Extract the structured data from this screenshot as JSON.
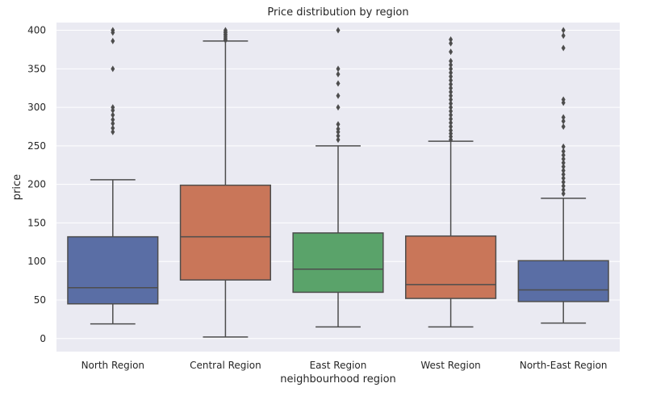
{
  "chart_data": {
    "type": "box",
    "title": "Price distribution by region",
    "xlabel": "neighbourhood region",
    "ylabel": "price",
    "ylim": [
      -17,
      410
    ],
    "yticks": [
      0,
      50,
      100,
      150,
      200,
      250,
      300,
      350,
      400
    ],
    "grid": true,
    "categories": [
      "North Region",
      "Central Region",
      "East Region",
      "West Region",
      "North-East Region"
    ],
    "boxes": [
      {
        "category": "North Region",
        "color": "#5a6ea5",
        "whisker_low": 19,
        "q1": 45,
        "median": 66,
        "q3": 132,
        "whisker_high": 206,
        "outliers": [
          268,
          273,
          279,
          284,
          290,
          296,
          300,
          350,
          386,
          397,
          400
        ]
      },
      {
        "category": "Central Region",
        "color": "#c97659",
        "whisker_low": 2,
        "q1": 76,
        "median": 132,
        "q3": 199,
        "whisker_high": 386,
        "outliers": [
          387,
          388,
          390,
          392,
          394,
          395,
          397,
          398,
          400
        ]
      },
      {
        "category": "East Region",
        "color": "#5aa36a",
        "whisker_low": 15,
        "q1": 60,
        "median": 90,
        "q3": 137,
        "whisker_high": 250,
        "outliers": [
          258,
          263,
          268,
          272,
          278,
          300,
          315,
          331,
          343,
          350,
          400
        ]
      },
      {
        "category": "West Region",
        "color": "#c97659",
        "whisker_low": 15,
        "q1": 52,
        "median": 70,
        "q3": 133,
        "whisker_high": 256,
        "outliers": [
          258,
          262,
          266,
          270,
          275,
          280,
          285,
          290,
          295,
          300,
          305,
          310,
          315,
          320,
          325,
          330,
          335,
          340,
          345,
          350,
          355,
          360,
          372,
          383,
          388
        ]
      },
      {
        "category": "North-East Region",
        "color": "#5a6ea5",
        "whisker_low": 20,
        "q1": 48,
        "median": 63,
        "q3": 101,
        "whisker_high": 182,
        "outliers": [
          188,
          193,
          198,
          203,
          208,
          213,
          218,
          223,
          228,
          233,
          238,
          243,
          249,
          275,
          282,
          287,
          306,
          310,
          377,
          393,
          400
        ]
      }
    ]
  }
}
